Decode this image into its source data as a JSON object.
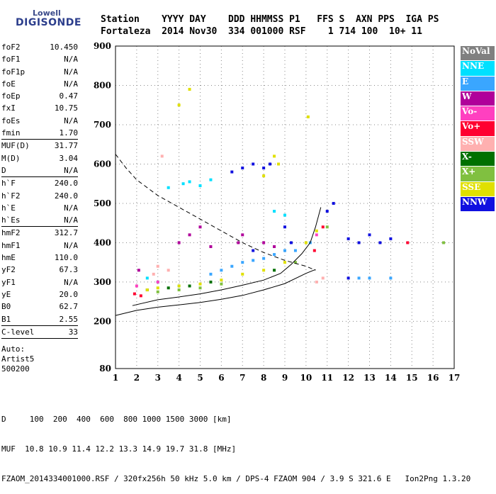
{
  "logo": {
    "line1": "Lowell",
    "line2": "DIGISONDE"
  },
  "header": {
    "labels": "Station    YYYY DAY    DDD HHMMSS P1   FFS S  AXN PPS  IGA PS",
    "values": "Fortaleza  2014 Nov30  334 001000 RSF    1 714 100  10+ 11"
  },
  "params": [
    {
      "group": 1,
      "items": [
        {
          "k": "foF2",
          "v": "10.450"
        },
        {
          "k": "foF1",
          "v": "N/A"
        },
        {
          "k": "foF1p",
          "v": "N/A"
        },
        {
          "k": "foE",
          "v": "N/A"
        },
        {
          "k": "foEp",
          "v": "0.47"
        },
        {
          "k": "fxI",
          "v": "10.75"
        },
        {
          "k": "foEs",
          "v": "N/A"
        },
        {
          "k": "fmin",
          "v": "1.70"
        }
      ]
    },
    {
      "group": 2,
      "items": [
        {
          "k": "MUF(D)",
          "v": "31.77"
        },
        {
          "k": "M(D)",
          "v": "3.04"
        },
        {
          "k": "D",
          "v": "N/A"
        }
      ]
    },
    {
      "group": 3,
      "items": [
        {
          "k": "h`F",
          "v": "240.0"
        },
        {
          "k": "h`F2",
          "v": "240.0"
        },
        {
          "k": "h`E",
          "v": "N/A"
        },
        {
          "k": "h`Es",
          "v": "N/A"
        }
      ]
    },
    {
      "group": 4,
      "items": [
        {
          "k": "hmF2",
          "v": "312.7"
        },
        {
          "k": "hmF1",
          "v": "N/A"
        },
        {
          "k": "hmE",
          "v": "110.0"
        },
        {
          "k": "yF2",
          "v": "67.3"
        },
        {
          "k": "yF1",
          "v": "N/A"
        },
        {
          "k": "yE",
          "v": "20.0"
        },
        {
          "k": "B0",
          "v": "62.7"
        },
        {
          "k": "B1",
          "v": "2.55"
        }
      ]
    },
    {
      "group": 5,
      "items": [
        {
          "k": "C-level",
          "v": "33"
        }
      ]
    }
  ],
  "auto": [
    "Auto:",
    "Artist5",
    "500200"
  ],
  "legend": [
    {
      "label": "NoVal",
      "color": "#808080"
    },
    {
      "label": "NNE",
      "color": "#00e0ff"
    },
    {
      "label": "E",
      "color": "#3aa6ff"
    },
    {
      "label": "W",
      "color": "#b0009a"
    },
    {
      "label": "Vo-",
      "color": "#ff40c0"
    },
    {
      "label": "Vo+",
      "color": "#ff0030"
    },
    {
      "label": "SSW",
      "color": "#ffb0b0"
    },
    {
      "label": "X-",
      "color": "#007000"
    },
    {
      "label": "X+",
      "color": "#80c040"
    },
    {
      "label": "SSE",
      "color": "#e0e000"
    },
    {
      "label": "NNW",
      "color": "#1010e0"
    }
  ],
  "footer": {
    "line1": "D     100  200  400  600  800 1000 1500 3000 [km]",
    "line2": "MUF  10.8 10.9 11.4 12.2 13.3 14.9 19.7 31.8 [MHz]",
    "line3": "FZAOM_2014334001000.RSF / 320fx256h 50 kHz 5.0 km / DPS-4 FZAOM 904 / 3.9 S 321.6 E   Ion2Png 1.3.20"
  },
  "chart_data": {
    "type": "scatter",
    "xlim": [
      1,
      17
    ],
    "ylim": [
      80,
      900
    ],
    "xticks": [
      1,
      2,
      3,
      4,
      5,
      6,
      7,
      8,
      9,
      10,
      11,
      12,
      13,
      14,
      15,
      16,
      17
    ],
    "yticks": [
      80,
      200,
      300,
      400,
      500,
      600,
      700,
      800,
      900
    ],
    "grid": true,
    "series": [
      {
        "name": "NNE",
        "points": [
          [
            4.2,
            550
          ],
          [
            4.5,
            555
          ],
          [
            5.0,
            545
          ],
          [
            5.5,
            560
          ],
          [
            3.5,
            540
          ],
          [
            2.5,
            310
          ],
          [
            3.0,
            300
          ],
          [
            4.0,
            290
          ],
          [
            8.5,
            480
          ],
          [
            9.0,
            470
          ]
        ]
      },
      {
        "name": "E",
        "points": [
          [
            5.5,
            320
          ],
          [
            6.0,
            330
          ],
          [
            6.5,
            340
          ],
          [
            7.0,
            350
          ],
          [
            7.5,
            355
          ],
          [
            8.0,
            360
          ],
          [
            8.5,
            370
          ],
          [
            9.0,
            380
          ],
          [
            9.5,
            380
          ],
          [
            10.2,
            400
          ],
          [
            12.5,
            310
          ],
          [
            13.0,
            310
          ],
          [
            14.0,
            310
          ]
        ]
      },
      {
        "name": "W",
        "points": [
          [
            4.0,
            400
          ],
          [
            4.5,
            420
          ],
          [
            5.0,
            440
          ],
          [
            5.5,
            390
          ],
          [
            6.8,
            400
          ],
          [
            7.0,
            420
          ],
          [
            8.0,
            400
          ],
          [
            8.5,
            390
          ],
          [
            2.1,
            330
          ]
        ]
      },
      {
        "name": "Vo-",
        "points": [
          [
            2.0,
            290
          ],
          [
            3.0,
            300
          ],
          [
            10.5,
            420
          ]
        ]
      },
      {
        "name": "Vo+",
        "points": [
          [
            1.9,
            270
          ],
          [
            2.2,
            265
          ],
          [
            10.4,
            380
          ],
          [
            10.8,
            440
          ],
          [
            14.8,
            400
          ]
        ]
      },
      {
        "name": "SSW",
        "points": [
          [
            2.8,
            320
          ],
          [
            3.0,
            340
          ],
          [
            3.5,
            330
          ],
          [
            3.2,
            620
          ],
          [
            10.5,
            300
          ],
          [
            10.8,
            310
          ]
        ]
      },
      {
        "name": "X-",
        "points": [
          [
            2.5,
            280
          ],
          [
            3.5,
            285
          ],
          [
            4.5,
            290
          ],
          [
            5.5,
            300
          ],
          [
            8.5,
            330
          ]
        ]
      },
      {
        "name": "X+",
        "points": [
          [
            3.0,
            275
          ],
          [
            4.0,
            280
          ],
          [
            5.0,
            285
          ],
          [
            6.0,
            295
          ],
          [
            9.5,
            350
          ],
          [
            11.0,
            440
          ],
          [
            16.5,
            400
          ]
        ]
      },
      {
        "name": "SSE",
        "points": [
          [
            2.5,
            280
          ],
          [
            3.0,
            285
          ],
          [
            4.0,
            290
          ],
          [
            5.0,
            295
          ],
          [
            6.0,
            305
          ],
          [
            7.0,
            320
          ],
          [
            8.0,
            330
          ],
          [
            9.0,
            350
          ],
          [
            10.0,
            400
          ],
          [
            10.5,
            430
          ],
          [
            4.5,
            790
          ],
          [
            4.0,
            750
          ],
          [
            8.5,
            620
          ],
          [
            8.7,
            600
          ],
          [
            8.0,
            570
          ],
          [
            10.1,
            720
          ]
        ]
      },
      {
        "name": "NNW",
        "points": [
          [
            6.5,
            580
          ],
          [
            7.0,
            590
          ],
          [
            7.5,
            600
          ],
          [
            8.0,
            590
          ],
          [
            8.3,
            600
          ],
          [
            9.0,
            440
          ],
          [
            9.3,
            400
          ],
          [
            7.5,
            380
          ],
          [
            11.0,
            480
          ],
          [
            11.3,
            500
          ],
          [
            12.0,
            410
          ],
          [
            12.5,
            400
          ],
          [
            13.0,
            420
          ],
          [
            13.5,
            400
          ],
          [
            14.0,
            410
          ],
          [
            12.0,
            310
          ]
        ]
      }
    ],
    "curves": [
      {
        "style": "solid",
        "points": [
          [
            1.0,
            215
          ],
          [
            2.0,
            228
          ],
          [
            3.0,
            236
          ],
          [
            4.0,
            242
          ],
          [
            5.0,
            248
          ],
          [
            6.0,
            256
          ],
          [
            7.0,
            266
          ],
          [
            8.0,
            280
          ],
          [
            9.0,
            296
          ],
          [
            10.0,
            322
          ],
          [
            10.45,
            332
          ]
        ]
      },
      {
        "style": "solid",
        "points": [
          [
            1.8,
            240
          ],
          [
            3.0,
            255
          ],
          [
            4.0,
            262
          ],
          [
            5.0,
            270
          ],
          [
            6.0,
            280
          ],
          [
            7.0,
            292
          ],
          [
            8.0,
            305
          ],
          [
            8.8,
            322
          ],
          [
            9.3,
            345
          ],
          [
            9.8,
            372
          ],
          [
            10.2,
            400
          ],
          [
            10.45,
            440
          ],
          [
            10.6,
            470
          ],
          [
            10.7,
            490
          ]
        ]
      },
      {
        "style": "dashed",
        "points": [
          [
            1.0,
            625
          ],
          [
            1.5,
            590
          ],
          [
            2.0,
            560
          ],
          [
            3.0,
            520
          ],
          [
            4.0,
            490
          ],
          [
            5.0,
            460
          ],
          [
            6.0,
            430
          ],
          [
            7.0,
            400
          ],
          [
            8.0,
            375
          ],
          [
            9.0,
            355
          ],
          [
            10.0,
            340
          ],
          [
            10.45,
            330
          ]
        ]
      }
    ]
  }
}
